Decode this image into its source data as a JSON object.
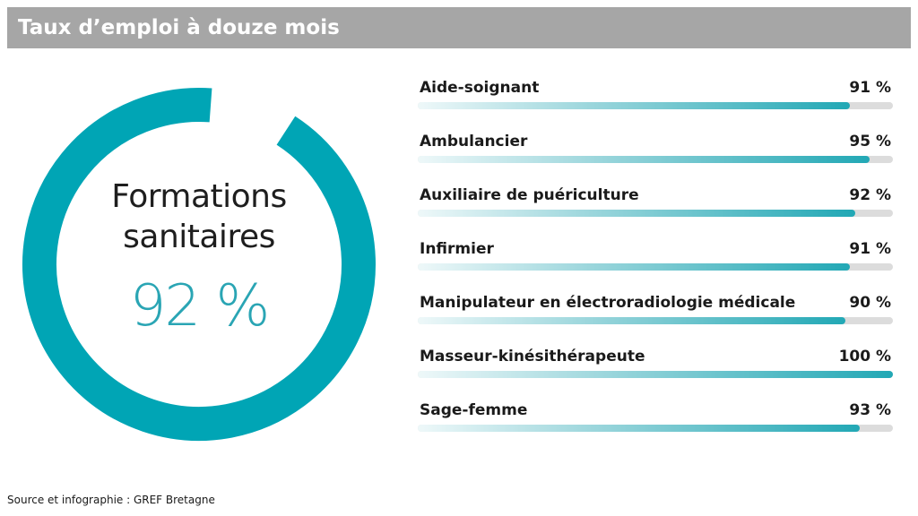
{
  "header": {
    "title": "Taux d’emploi à douze mois"
  },
  "summary": {
    "label_line1": "Formations",
    "label_line2": "sanitaires",
    "value_text": "92 %",
    "value": 92
  },
  "colors": {
    "accent": "#00A5B5",
    "track": "#DCDCDC",
    "title_bar": "#A6A6A6",
    "summary_value": "#2AA5B4"
  },
  "chart_data": {
    "type": "bar",
    "orientation": "horizontal",
    "title": "Taux d’emploi à douze mois",
    "categories": [
      "Aide-soignant",
      "Ambulancier",
      "Auxiliaire de puériculture",
      "Infirmier",
      "Manipulateur en électroradiologie médicale",
      "Masseur-kinésithérapeute",
      "Sage-femme"
    ],
    "values": [
      91,
      95,
      92,
      91,
      90,
      100,
      93
    ],
    "value_labels": [
      "91 %",
      "95 %",
      "92 %",
      "91 %",
      "90 %",
      "100 %",
      "93 %"
    ],
    "xlim": [
      0,
      100
    ],
    "unit": "%"
  },
  "footer": {
    "source": "Source et infographie : GREF Bretagne"
  }
}
